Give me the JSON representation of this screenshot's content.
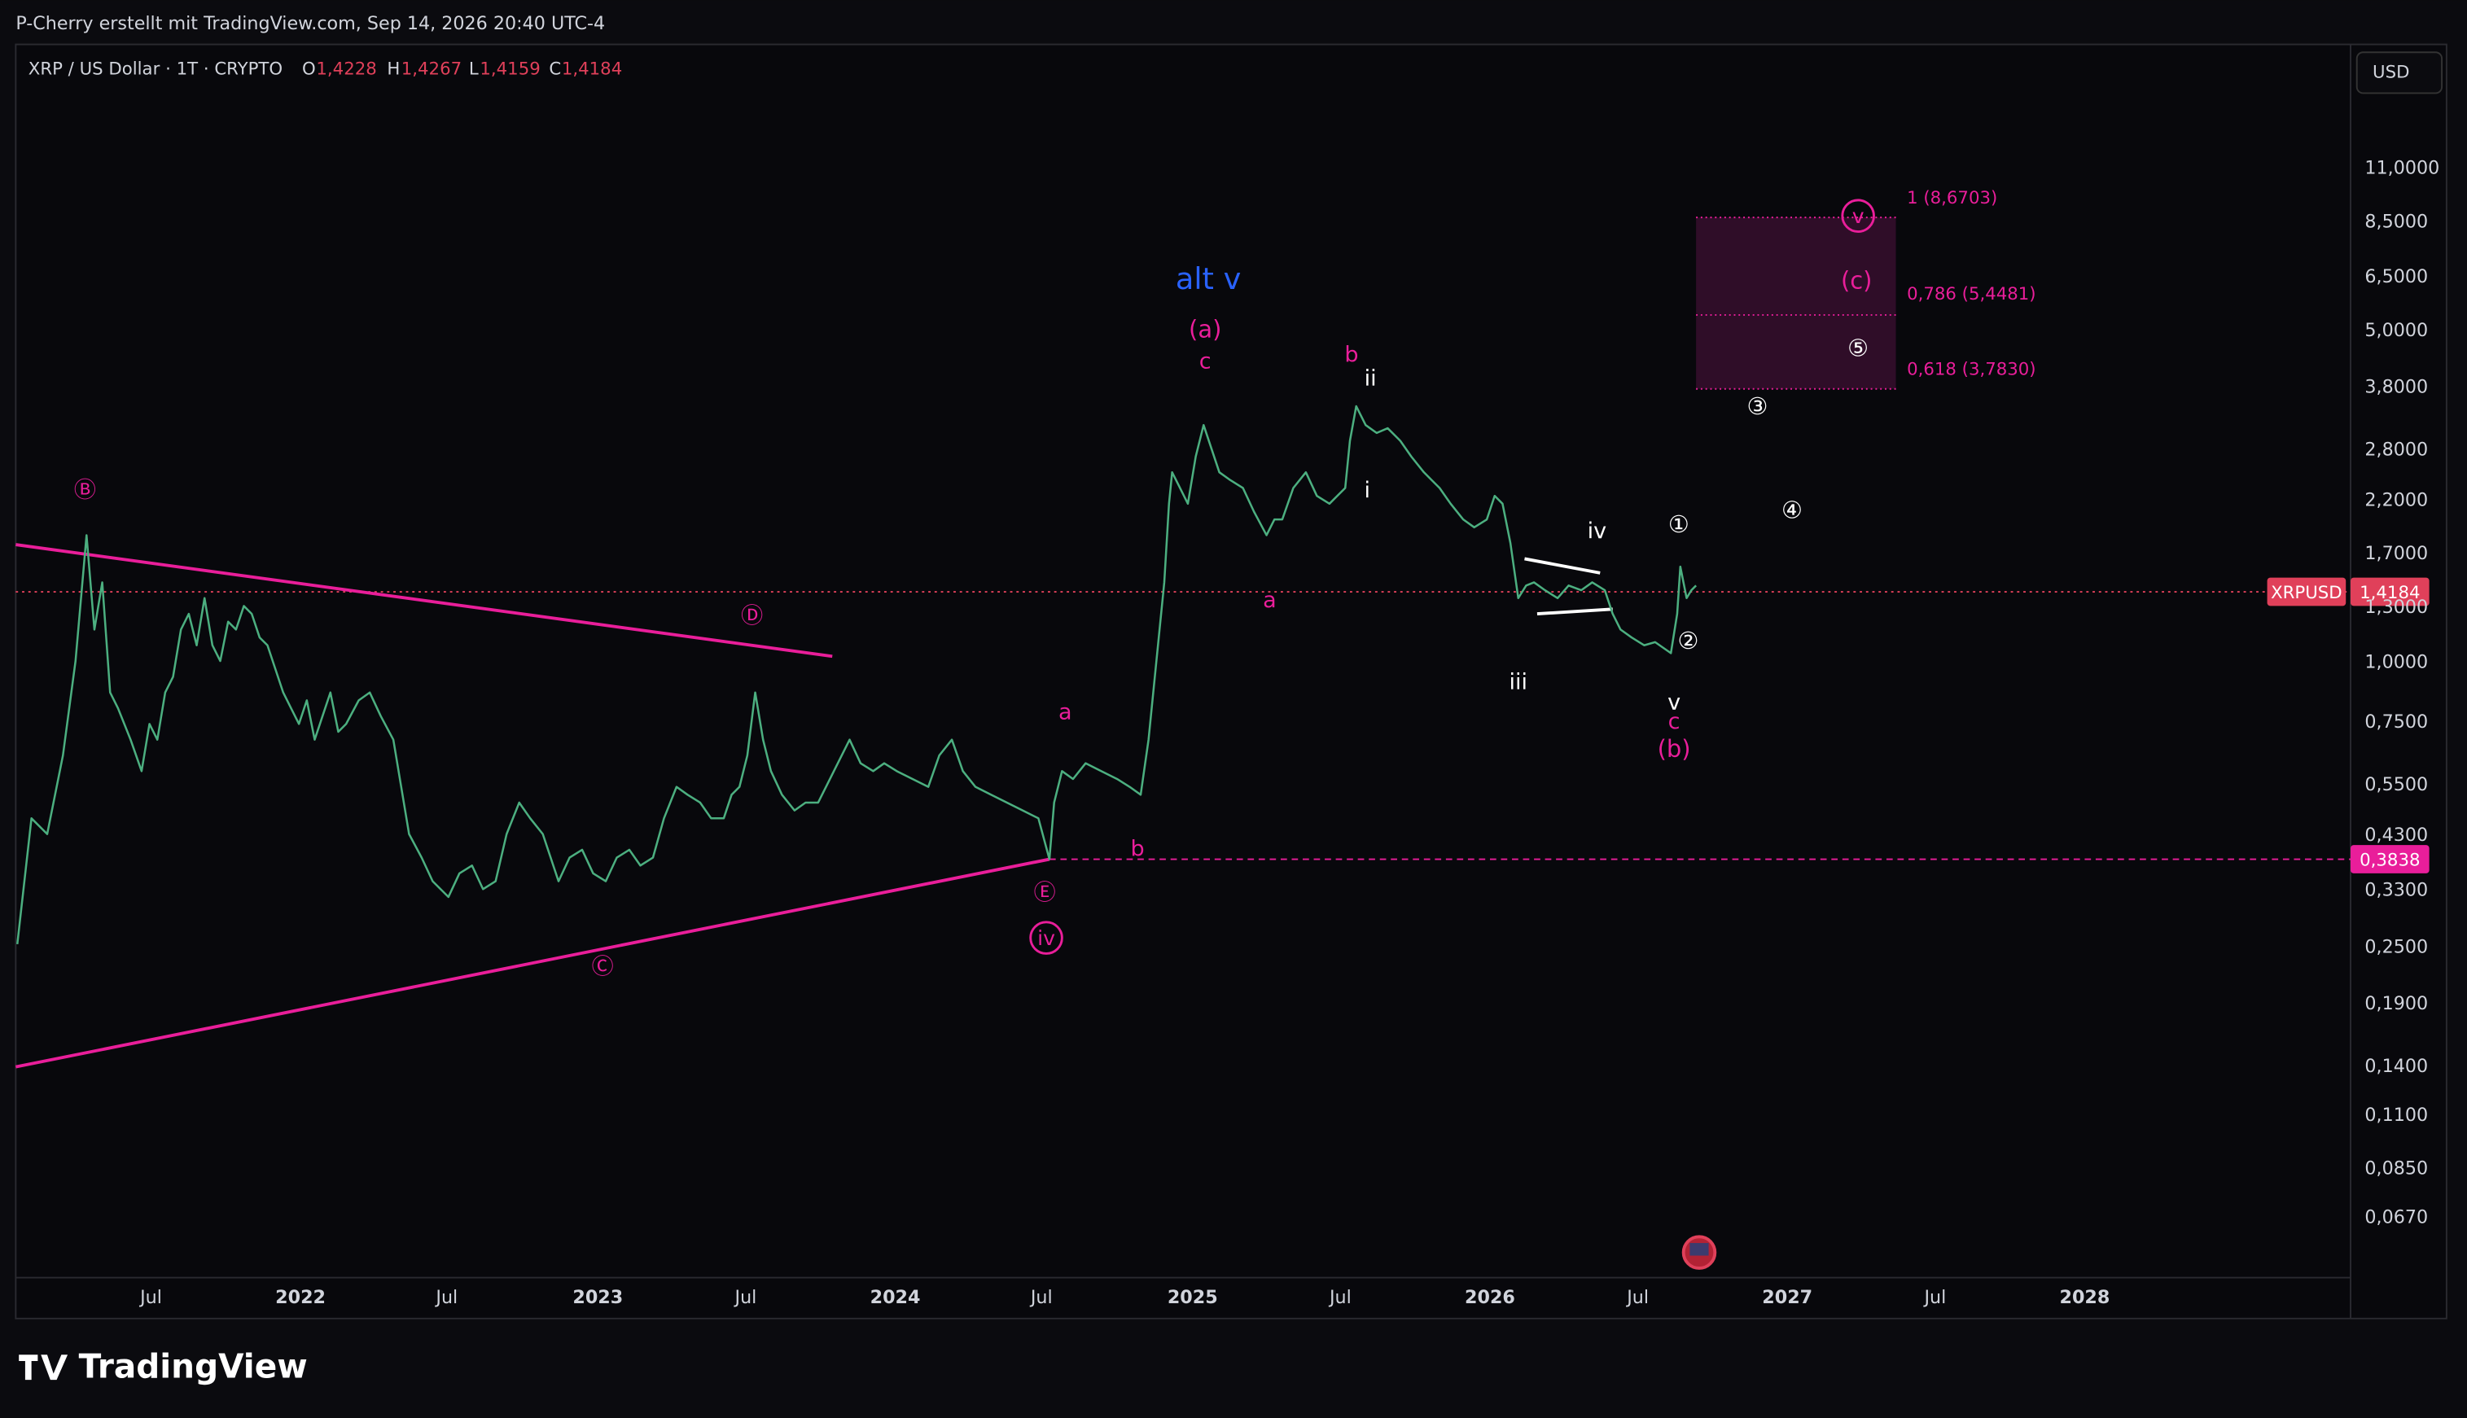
{
  "header": {
    "title": "P-Cherry erstellt mit TradingView.com, Sep 14, 2026 20:40 UTC-4"
  },
  "symbol": {
    "name": "XRP / US Dollar · 1T · CRYPTO",
    "open_label": "O",
    "open": "1,4228",
    "high_label": "H",
    "high": "1,4267",
    "low_label": "L",
    "low": "1,4159",
    "close_label": "C",
    "close": "1,4184"
  },
  "price_axis": {
    "currency": "USD",
    "labels": [
      "11,0000",
      "8,5000",
      "6,5000",
      "5,0000",
      "3,8000",
      "2,8000",
      "2,2000",
      "1,7000",
      "1,3000",
      "1,0000",
      "0,7500",
      "0,5500",
      "0,4300",
      "0,3300",
      "0,2500",
      "0,1900",
      "0,1400",
      "0,1100",
      "0,0850",
      "0,0670"
    ],
    "last_price_symbol": "XRPUSD",
    "last_price": "1,4184",
    "level_price": "0,3838"
  },
  "time_axis": {
    "labels": [
      "Jul",
      "2022",
      "Jul",
      "2023",
      "Jul",
      "2024",
      "Jul",
      "2025",
      "Jul",
      "2026",
      "Jul",
      "2027",
      "Jul",
      "2028"
    ]
  },
  "annotations": [
    "alt v",
    "(a)",
    "c",
    "b",
    "ii",
    "i",
    "a",
    "iv",
    "iii",
    "v",
    "c",
    "(b)",
    "a",
    "b",
    "(c)",
    "Ⓑ",
    "Ⓓ",
    "Ⓒ",
    "Ⓔ",
    "iv",
    "v",
    "①",
    "②",
    "③",
    "④",
    "⑤"
  ],
  "fib_levels": [
    "1 (8,6703)",
    "0,786 (5,4481)",
    "0,618 (3,7830)"
  ],
  "footer": {
    "brand": "TradingView"
  }
}
